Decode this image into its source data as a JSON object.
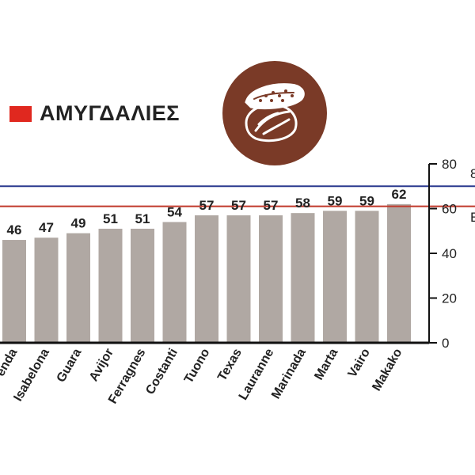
{
  "legend": {
    "label": "ΑΜΥΓΔΑΛΙΕΣ",
    "swatch_color": "#e0281f"
  },
  "badge": {
    "icon": "almond-icon",
    "color": "#7a3a27"
  },
  "reference_lines": [
    {
      "value": 70,
      "color": "#2b3a8f",
      "edge_label": "8"
    },
    {
      "value": 61,
      "color": "#c0392b",
      "edge_label": "E"
    }
  ],
  "chart_data": {
    "type": "bar",
    "categories": [
      "Penda",
      "Isabelona",
      "Guara",
      "Avijor",
      "Ferragnes",
      "Costanti",
      "Tuono",
      "Texas",
      "Lauranne",
      "Marinada",
      "Marta",
      "Vairo",
      "Makako"
    ],
    "values": [
      46,
      47,
      49,
      51,
      51,
      54,
      57,
      57,
      57,
      58,
      59,
      59,
      62
    ],
    "data_labels": [
      "46",
      "47",
      "49",
      "51",
      "51",
      "54",
      "57",
      "57",
      "57",
      "58",
      "59",
      "59",
      "62"
    ],
    "category_labels": [
      "enda",
      "Isabelona",
      "Guara",
      "Avijor",
      "Ferragnes",
      "Costanti",
      "Tuono",
      "Texas",
      "Lauranne",
      "Marinada",
      "Marta",
      "Vairo",
      "Makako"
    ],
    "ylim": [
      0,
      80
    ],
    "yticks": [
      0,
      20,
      40,
      60,
      80
    ],
    "ytick_labels": [
      "0",
      "20",
      "40",
      "60",
      "80"
    ],
    "bar_color": "#b0a8a3",
    "grid": false,
    "axis_side": "right"
  }
}
